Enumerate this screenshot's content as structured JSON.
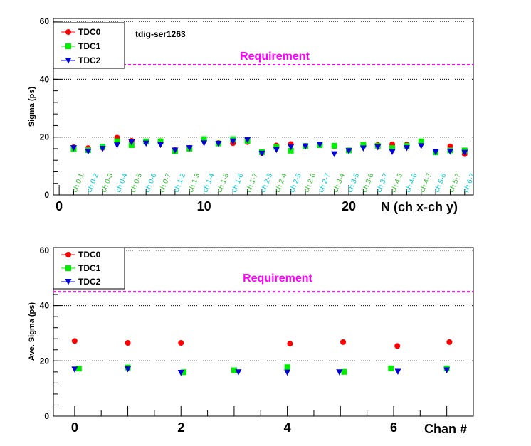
{
  "colors": {
    "tdc0": "#ff0000",
    "tdc1": "#00ee00",
    "tdc2": "#0000dd",
    "requirement": "#ff00ff",
    "ch_green": "#33bb33",
    "ch_cyan": "#00cccc"
  },
  "chart_data": [
    {
      "type": "scatter",
      "title": "",
      "annotation": "tdig-ser1263",
      "xlabel": "N (ch x-ch y)",
      "ylabel": "Sigma (ps)",
      "xlim": [
        -0.4,
        28.6
      ],
      "ylim": [
        0,
        61
      ],
      "x_ticks": [
        "0",
        "10",
        "20"
      ],
      "y_ticks": [
        "0",
        "20",
        "40",
        "60"
      ],
      "grid_y": true,
      "legend_position": "top-left",
      "requirement": {
        "label": "Requirement",
        "y": 45
      },
      "pair_labels": [
        "ch 0-1",
        "ch 0-2",
        "ch 0-3",
        "ch 0-4",
        "ch 0-5",
        "ch 0-6",
        "ch 0-7",
        "ch 1-2",
        "ch 1-3",
        "ch 1-4",
        "ch 1-5",
        "ch 1-6",
        "ch 1-7",
        "ch 2-3",
        "ch 2-4",
        "ch 2-5",
        "ch 2-6",
        "ch 2-7",
        "ch 3-4",
        "ch 3-5",
        "ch 3-6",
        "ch 3-7",
        "ch 4-5",
        "ch 4-6",
        "ch 4-7",
        "ch 5-6",
        "ch 5-7",
        "ch 6-7"
      ],
      "x": [
        1,
        2,
        3,
        4,
        5,
        6,
        7,
        8,
        9,
        10,
        11,
        12,
        13,
        14,
        15,
        16,
        17,
        18,
        19,
        20,
        21,
        22,
        23,
        24,
        25,
        26,
        27,
        28
      ],
      "series": [
        {
          "name": "TDC0",
          "marker": "circle",
          "values": [
            16.5,
            16.2,
            16.3,
            19.8,
            18.7,
            18.4,
            18.6,
            15.5,
            16.3,
            19.3,
            18.0,
            17.9,
            18.3,
            14.5,
            17.1,
            17.6,
            17.0,
            17.5,
            16.9,
            15.4,
            17.4,
            17.3,
            17.5,
            17.4,
            18.1,
            14.8,
            16.8,
            14.1
          ]
        },
        {
          "name": "TDC1",
          "marker": "square",
          "values": [
            15.9,
            15.5,
            16.7,
            18.5,
            17.2,
            18.5,
            18.5,
            15.2,
            16.0,
            19.3,
            17.8,
            19.3,
            18.7,
            14.8,
            16.6,
            15.3,
            16.9,
            17.2,
            17.0,
            15.4,
            17.3,
            17.0,
            16.2,
            17.0,
            18.5,
            14.7,
            15.4,
            15.4
          ]
        },
        {
          "name": "TDC2",
          "marker": "triangle-down",
          "values": [
            16.2,
            15.0,
            16.0,
            17.2,
            18.2,
            17.8,
            17.3,
            15.4,
            16.2,
            17.9,
            17.7,
            18.5,
            19.0,
            14.3,
            15.6,
            16.5,
            16.8,
            17.4,
            14.1,
            15.2,
            16.1,
            16.5,
            14.9,
            16.2,
            16.9,
            14.8,
            15.0,
            14.6
          ]
        }
      ]
    },
    {
      "type": "scatter",
      "title": "",
      "xlabel": "Chan #",
      "ylabel": "Ave. Sigma (ps)",
      "xlim": [
        -0.4,
        7.5
      ],
      "ylim": [
        0,
        61
      ],
      "x_ticks": [
        "0",
        "2",
        "4",
        "6"
      ],
      "y_ticks": [
        "0",
        "20",
        "40",
        "60"
      ],
      "grid_y": true,
      "legend_position": "top-left",
      "requirement": {
        "label": "Requirement",
        "y": 45
      },
      "series": [
        {
          "name": "TDC0",
          "marker": "circle",
          "x": [
            0.0,
            1.0,
            2.0,
            4.05,
            5.05,
            6.07,
            7.05
          ],
          "values": [
            27.2,
            26.5,
            26.5,
            26.2,
            26.8,
            25.4,
            26.8
          ]
        },
        {
          "name": "TDC1",
          "marker": "square",
          "x": [
            0.08,
            1.0,
            2.05,
            3.0,
            4.0,
            5.07,
            5.95,
            7.0
          ],
          "values": [
            17.2,
            17.6,
            15.9,
            16.6,
            17.7,
            16.0,
            17.3,
            17.3
          ]
        },
        {
          "name": "TDC2",
          "marker": "triangle-down",
          "x": [
            0.0,
            1.0,
            2.0,
            3.08,
            4.0,
            4.98,
            6.08,
            7.0
          ],
          "values": [
            16.9,
            17.0,
            15.7,
            15.9,
            15.8,
            15.9,
            16.1,
            16.6
          ]
        }
      ]
    }
  ]
}
